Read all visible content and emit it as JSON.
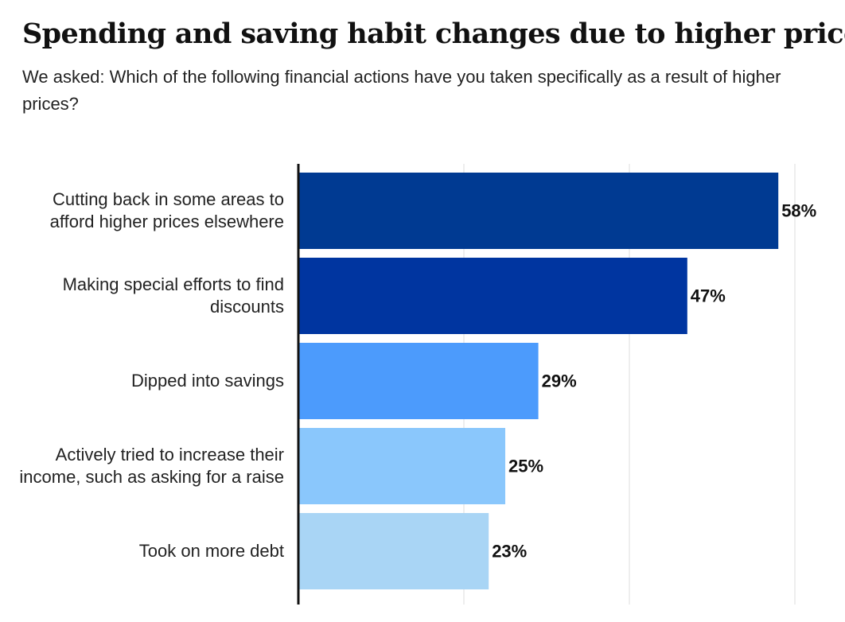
{
  "chart_data": {
    "type": "bar",
    "orientation": "horizontal",
    "title": "Spending and saving habit changes due to higher prices",
    "subtitle": "We asked: Which of the following financial actions have you taken specifically as a result of higher prices?",
    "categories": [
      "Cutting back in some areas to afford higher prices elsewhere",
      "Making special efforts to find discounts",
      "Dipped into savings",
      "Actively tried to increase their income, such as asking for a raise",
      "Took on more debt"
    ],
    "values": [
      58,
      47,
      29,
      25,
      23
    ],
    "data_labels": [
      "58%",
      "47%",
      "29%",
      "25%",
      "23%"
    ],
    "bar_colors": [
      "#003A92",
      "#0035A0",
      "#4C9BFC",
      "#8AC7FC",
      "#A9D5F5"
    ],
    "xlim": [
      0,
      60
    ],
    "grid": true,
    "gridline_color": "#dddddd"
  }
}
